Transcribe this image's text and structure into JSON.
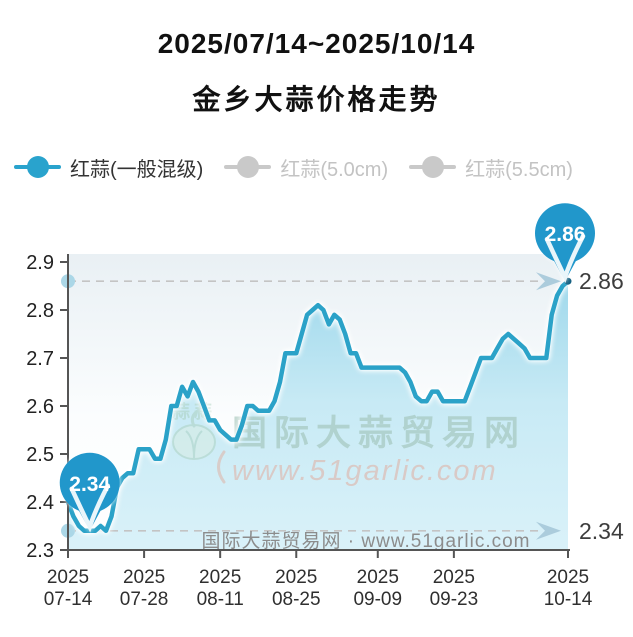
{
  "title": {
    "line1": "2025/07/14~2025/10/14",
    "line2": "金乡大蒜价格走势"
  },
  "legend": {
    "items": [
      {
        "label": "红蒜(一般混级)",
        "active": true
      },
      {
        "label": "红蒜(5.0cm)",
        "active": false
      },
      {
        "label": "红蒜(5.5cm)",
        "active": false
      }
    ]
  },
  "watermark": {
    "center_text": "国际大蒜贸易网",
    "center_url": "www.51garlic.com",
    "logo_text": "蒜蒜",
    "bottom_text": "国际大蒜贸易网 · www.51garlic.com"
  },
  "colors": {
    "line": "#2ba2c8",
    "pin": "#2197cb",
    "legend_active": "#29a3cd",
    "legend_inactive": "#c9c9c9",
    "area_top": "#9bd7eb",
    "area_mid": "#c2e8f4",
    "area_bottom": "#d3eff8",
    "dashed": "#c4c4c4",
    "axis_dot": "#abd7e7",
    "arrow": "#a9c9da",
    "axis": "#555555",
    "end_dot": "#135f80"
  },
  "chart_data": {
    "type": "line",
    "title": "金乡大蒜价格走势",
    "series_name": "红蒜(一般混级)",
    "xlabel": "",
    "ylabel": "",
    "ylim": [
      2.3,
      2.9
    ],
    "y_ticks": [
      2.3,
      2.4,
      2.5,
      2.6,
      2.7,
      2.8,
      2.9
    ],
    "x_ticks": [
      {
        "day": 0,
        "line1": "2025",
        "line2": "07-14"
      },
      {
        "day": 14,
        "line1": "2025",
        "line2": "07-28"
      },
      {
        "day": 28,
        "line1": "2025",
        "line2": "08-11"
      },
      {
        "day": 42,
        "line1": "2025",
        "line2": "08-25"
      },
      {
        "day": 57,
        "line1": "2025",
        "line2": "09-09"
      },
      {
        "day": 71,
        "line1": "2025",
        "line2": "09-23"
      },
      {
        "day": 92,
        "line1": "2025",
        "line2": "10-14"
      }
    ],
    "values": [
      2.4,
      2.37,
      2.35,
      2.34,
      2.34,
      2.34,
      2.35,
      2.34,
      2.37,
      2.43,
      2.45,
      2.46,
      2.46,
      2.51,
      2.51,
      2.51,
      2.49,
      2.49,
      2.53,
      2.6,
      2.6,
      2.64,
      2.62,
      2.65,
      2.63,
      2.6,
      2.57,
      2.57,
      2.55,
      2.54,
      2.53,
      2.53,
      2.56,
      2.6,
      2.6,
      2.59,
      2.59,
      2.59,
      2.61,
      2.65,
      2.71,
      2.71,
      2.71,
      2.75,
      2.79,
      2.8,
      2.81,
      2.8,
      2.77,
      2.79,
      2.78,
      2.75,
      2.71,
      2.71,
      2.68,
      2.68,
      2.68,
      2.68,
      2.68,
      2.68,
      2.68,
      2.68,
      2.67,
      2.65,
      2.62,
      2.61,
      2.61,
      2.63,
      2.63,
      2.61,
      2.61,
      2.61,
      2.61,
      2.61,
      2.64,
      2.67,
      2.7,
      2.7,
      2.7,
      2.72,
      2.74,
      2.75,
      2.74,
      2.73,
      2.72,
      2.7,
      2.7,
      2.7,
      2.7,
      2.79,
      2.83,
      2.85,
      2.86
    ],
    "annotations": [
      {
        "type": "min",
        "label": "2.34",
        "value": 2.34,
        "index": 4
      },
      {
        "type": "max",
        "label": "2.86",
        "value": 2.86,
        "index": 92
      }
    ],
    "grid": false,
    "legend_position": "top"
  }
}
